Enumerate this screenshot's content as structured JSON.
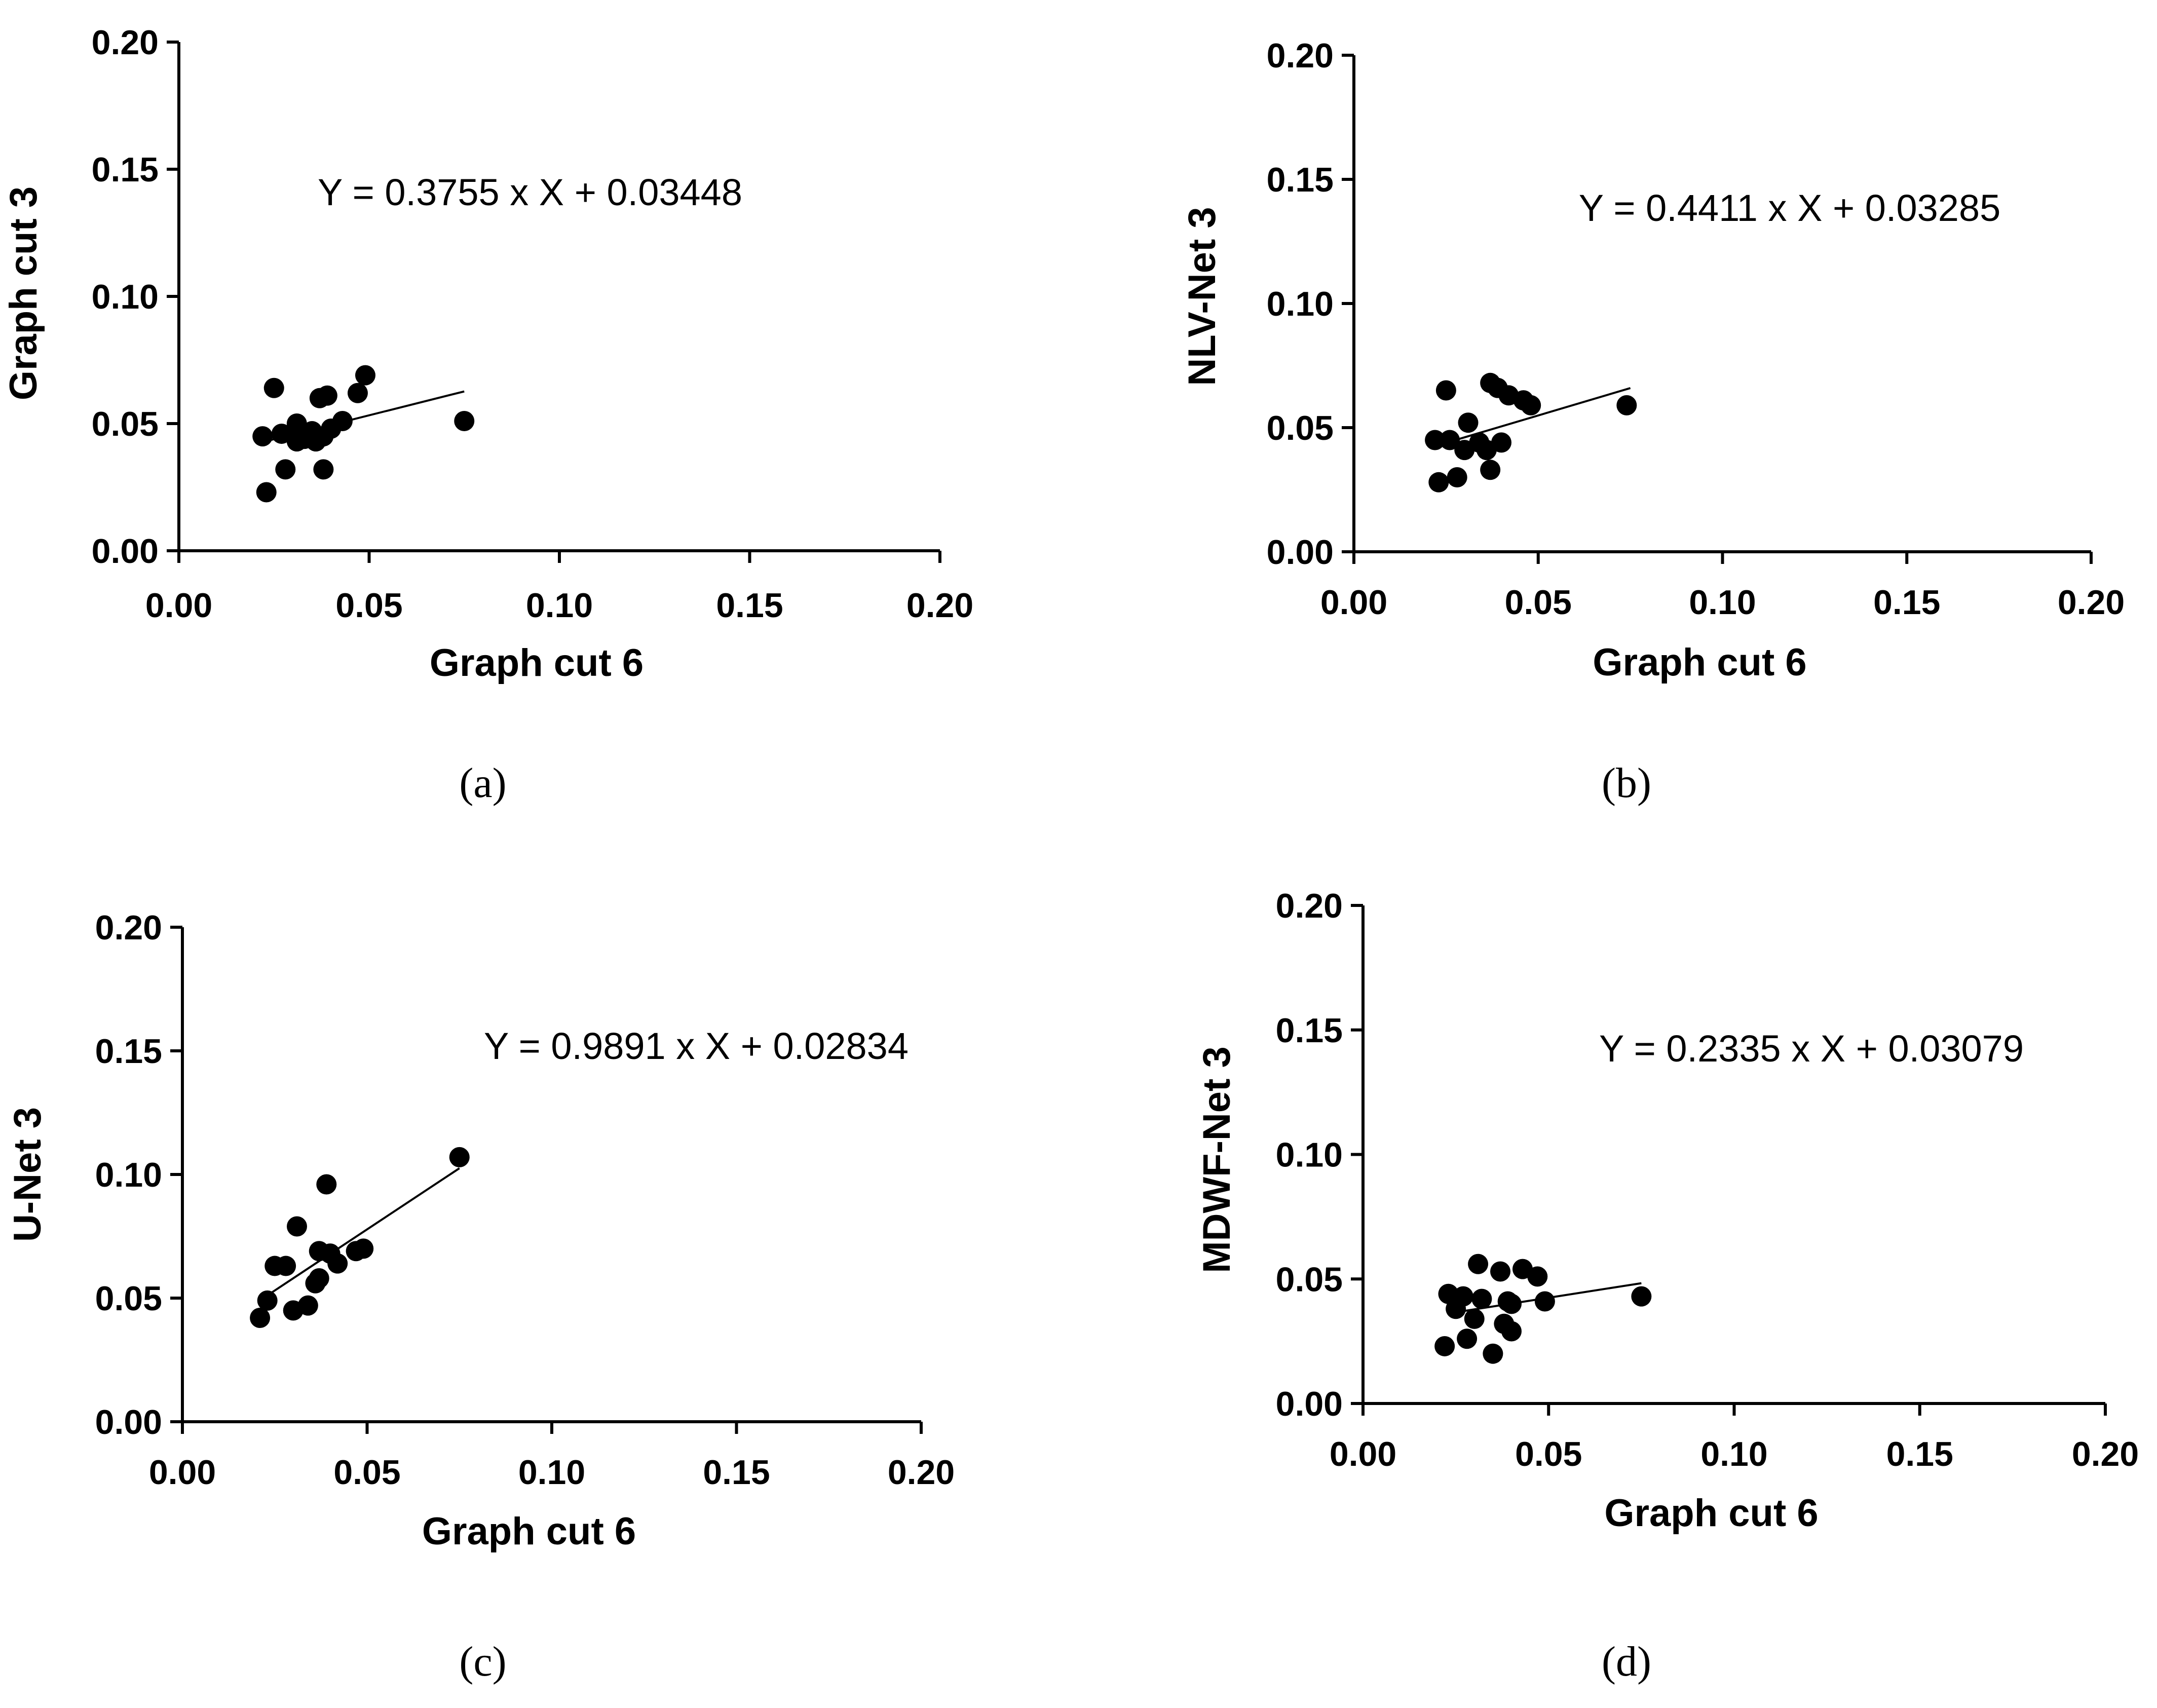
{
  "colors": {
    "ink": "#000000",
    "background": "#ffffff"
  },
  "chart_data": [
    {
      "type": "scatter",
      "panel_label": "(a)",
      "xlabel": "Graph cut 6",
      "ylabel": "Graph cut 3",
      "xlim": [
        0,
        0.2
      ],
      "ylim": [
        0,
        0.2
      ],
      "xticks": [
        "0.00",
        "0.05",
        "0.10",
        "0.15",
        "0.20"
      ],
      "yticks": [
        "0.00",
        "0.05",
        "0.10",
        "0.15",
        "0.20"
      ],
      "equation": "Y = 0.3755 x X + 0.03448",
      "fit": {
        "slope": 0.3755,
        "intercept": 0.03448,
        "x_range": [
          0.024,
          0.075
        ]
      },
      "points": [
        [
          0.022,
          0.045
        ],
        [
          0.023,
          0.023
        ],
        [
          0.025,
          0.064
        ],
        [
          0.027,
          0.046
        ],
        [
          0.028,
          0.032
        ],
        [
          0.03,
          0.046
        ],
        [
          0.031,
          0.05
        ],
        [
          0.031,
          0.043
        ],
        [
          0.033,
          0.044
        ],
        [
          0.035,
          0.047
        ],
        [
          0.036,
          0.043
        ],
        [
          0.037,
          0.06
        ],
        [
          0.038,
          0.032
        ],
        [
          0.038,
          0.045
        ],
        [
          0.039,
          0.061
        ],
        [
          0.04,
          0.048
        ],
        [
          0.043,
          0.051
        ],
        [
          0.047,
          0.062
        ],
        [
          0.049,
          0.069
        ],
        [
          0.075,
          0.051
        ]
      ]
    },
    {
      "type": "scatter",
      "panel_label": "(b)",
      "xlabel": "Graph cut 6",
      "ylabel": "NLV-Net 3",
      "xlim": [
        0,
        0.2
      ],
      "ylim": [
        0,
        0.2
      ],
      "xticks": [
        "0.00",
        "0.05",
        "0.10",
        "0.15",
        "0.20"
      ],
      "yticks": [
        "0.00",
        "0.05",
        "0.10",
        "0.15",
        "0.20"
      ],
      "equation": "Y = 0.4411 x X + 0.03285",
      "fit": {
        "slope": 0.4411,
        "intercept": 0.03285,
        "x_range": [
          0.024,
          0.075
        ]
      },
      "points": [
        [
          0.022,
          0.045
        ],
        [
          0.023,
          0.028
        ],
        [
          0.025,
          0.065
        ],
        [
          0.026,
          0.045
        ],
        [
          0.028,
          0.03
        ],
        [
          0.03,
          0.041
        ],
        [
          0.031,
          0.052
        ],
        [
          0.034,
          0.044
        ],
        [
          0.036,
          0.041
        ],
        [
          0.037,
          0.033
        ],
        [
          0.037,
          0.068
        ],
        [
          0.039,
          0.066
        ],
        [
          0.04,
          0.044
        ],
        [
          0.042,
          0.063
        ],
        [
          0.046,
          0.061
        ],
        [
          0.048,
          0.059
        ],
        [
          0.074,
          0.059
        ]
      ]
    },
    {
      "type": "scatter",
      "panel_label": "(c)",
      "xlabel": "Graph cut 6",
      "ylabel": "U-Net 3",
      "xlim": [
        0,
        0.2
      ],
      "ylim": [
        0,
        0.2
      ],
      "xticks": [
        "0.00",
        "0.05",
        "0.10",
        "0.15",
        "0.20"
      ],
      "yticks": [
        "0.00",
        "0.05",
        "0.10",
        "0.15",
        "0.20"
      ],
      "equation": "Y = 0.9891 x X + 0.02834",
      "fit": {
        "slope": 0.9891,
        "intercept": 0.02834,
        "x_range": [
          0.024,
          0.075
        ]
      },
      "points": [
        [
          0.021,
          0.042
        ],
        [
          0.023,
          0.049
        ],
        [
          0.025,
          0.063
        ],
        [
          0.028,
          0.063
        ],
        [
          0.03,
          0.045
        ],
        [
          0.031,
          0.079
        ],
        [
          0.034,
          0.047
        ],
        [
          0.036,
          0.056
        ],
        [
          0.037,
          0.069
        ],
        [
          0.037,
          0.058
        ],
        [
          0.039,
          0.096
        ],
        [
          0.04,
          0.068
        ],
        [
          0.042,
          0.064
        ],
        [
          0.047,
          0.069
        ],
        [
          0.049,
          0.07
        ],
        [
          0.075,
          0.107
        ]
      ]
    },
    {
      "type": "scatter",
      "panel_label": "(d)",
      "xlabel": "Graph cut 6",
      "ylabel": "MDWF-Net 3",
      "xlim": [
        0,
        0.2
      ],
      "ylim": [
        0,
        0.2
      ],
      "xticks": [
        "0.00",
        "0.05",
        "0.10",
        "0.15",
        "0.20"
      ],
      "yticks": [
        "0.00",
        "0.05",
        "0.10",
        "0.15",
        "0.20"
      ],
      "equation": "Y = 0.2335 x X + 0.03079",
      "fit": {
        "slope": 0.2335,
        "intercept": 0.03079,
        "x_range": [
          0.024,
          0.075
        ]
      },
      "points": [
        [
          0.022,
          0.023
        ],
        [
          0.023,
          0.044
        ],
        [
          0.025,
          0.038
        ],
        [
          0.027,
          0.043
        ],
        [
          0.028,
          0.026
        ],
        [
          0.03,
          0.034
        ],
        [
          0.031,
          0.056
        ],
        [
          0.032,
          0.042
        ],
        [
          0.035,
          0.02
        ],
        [
          0.037,
          0.053
        ],
        [
          0.038,
          0.032
        ],
        [
          0.039,
          0.041
        ],
        [
          0.04,
          0.04
        ],
        [
          0.04,
          0.029
        ],
        [
          0.043,
          0.054
        ],
        [
          0.047,
          0.051
        ],
        [
          0.049,
          0.041
        ],
        [
          0.075,
          0.043
        ]
      ]
    }
  ]
}
